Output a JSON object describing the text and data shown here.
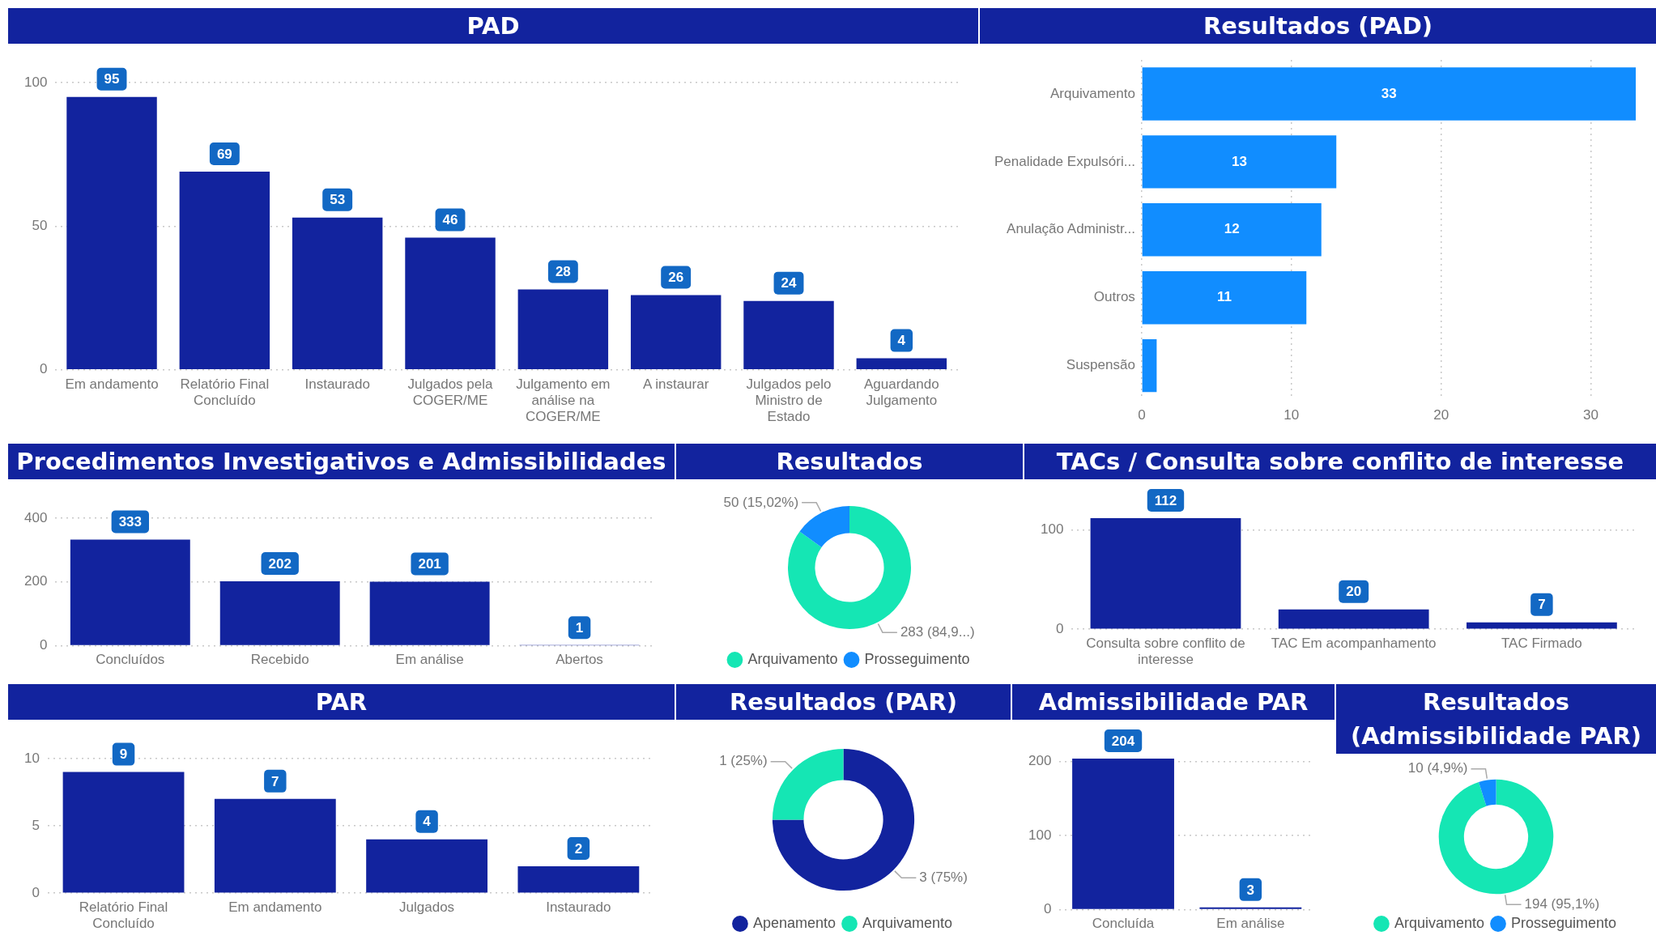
{
  "chart_data": [
    {
      "type": "bar",
      "title": "PAD",
      "categories": [
        "Em andamento",
        "Relatório Final Concluído",
        "Instaurado",
        "Julgados pela COGER/ME",
        "Julgamento em análise na COGER/ME",
        "A instaurar",
        "Julgados pelo Ministro de Estado",
        "Aguardando Julgamento"
      ],
      "values": [
        95,
        69,
        53,
        46,
        28,
        26,
        24,
        4
      ],
      "color": "#12239e",
      "ylim": [
        0,
        100
      ],
      "yticks": [
        0,
        50,
        100
      ],
      "grid": "y",
      "data_labels": true
    },
    {
      "type": "bar",
      "orientation": "horizontal",
      "title": "Resultados (PAD)",
      "categories": [
        "Arquivamento",
        "Penalidade Expulsóri...",
        "Anulação Administr...",
        "Outros",
        "Suspensão"
      ],
      "values": [
        33,
        13,
        12,
        11,
        1
      ],
      "value_labels": [
        "33",
        "13",
        "12",
        "11",
        null
      ],
      "color": "#118dff",
      "xlim": [
        0,
        33
      ],
      "xticks": [
        0,
        10,
        20,
        30
      ],
      "grid": "x"
    },
    {
      "type": "bar",
      "title": "Procedimentos Investigativos e Admissibilidades",
      "categories": [
        "Concluídos",
        "Recebido",
        "Em análise",
        "Abertos"
      ],
      "values": [
        333,
        202,
        201,
        1
      ],
      "color": "#12239e",
      "ylim": [
        0,
        400
      ],
      "yticks": [
        0,
        200,
        400
      ],
      "grid": "y",
      "data_labels": true
    },
    {
      "type": "donut",
      "title": "Resultados",
      "categories": [
        "Arquivamento",
        "Prosseguimento"
      ],
      "values": [
        283,
        50
      ],
      "colors": [
        "#15e6b4",
        "#118dff"
      ],
      "value_labels": [
        "283 (84,9...)",
        "50 (15,02%)"
      ],
      "legend": "bottom"
    },
    {
      "type": "bar",
      "title": "TACs / Consulta sobre conflito de interesse",
      "categories": [
        "Consulta sobre conflito de interesse",
        "TAC Em acompanhamento",
        "TAC Firmado"
      ],
      "values": [
        112,
        20,
        7
      ],
      "color": "#12239e",
      "ylim": [
        0,
        112
      ],
      "yticks": [
        0,
        100
      ],
      "grid": "y",
      "data_labels": true
    },
    {
      "type": "bar",
      "title": "PAR",
      "categories": [
        "Relatório Final Concluído",
        "Em andamento",
        "Julgados",
        "Instaurado"
      ],
      "values": [
        9,
        7,
        4,
        2
      ],
      "color": "#12239e",
      "ylim": [
        0,
        10
      ],
      "yticks": [
        0,
        5,
        10
      ],
      "grid": "y",
      "data_labels": true
    },
    {
      "type": "donut",
      "title": "Resultados (PAR)",
      "categories": [
        "Apenamento",
        "Arquivamento"
      ],
      "values": [
        3,
        1
      ],
      "colors": [
        "#12239e",
        "#15e6b4"
      ],
      "value_labels": [
        "3 (75%)",
        "1 (25%)"
      ],
      "legend": "bottom"
    },
    {
      "type": "bar",
      "title": "Admissibilidade PAR",
      "categories": [
        "Concluída",
        "Em análise"
      ],
      "values": [
        204,
        3
      ],
      "color": "#12239e",
      "ylim": [
        0,
        204
      ],
      "yticks": [
        0,
        100,
        200
      ],
      "grid": "y",
      "data_labels": true
    },
    {
      "type": "donut",
      "title": "Resultados (Admissibilidade PAR)",
      "categories": [
        "Arquivamento",
        "Prosseguimento"
      ],
      "values": [
        194,
        10
      ],
      "colors": [
        "#15e6b4",
        "#118dff"
      ],
      "value_labels": [
        "194 (95,1%)",
        "10 (4,9%)"
      ],
      "legend": "bottom"
    }
  ]
}
